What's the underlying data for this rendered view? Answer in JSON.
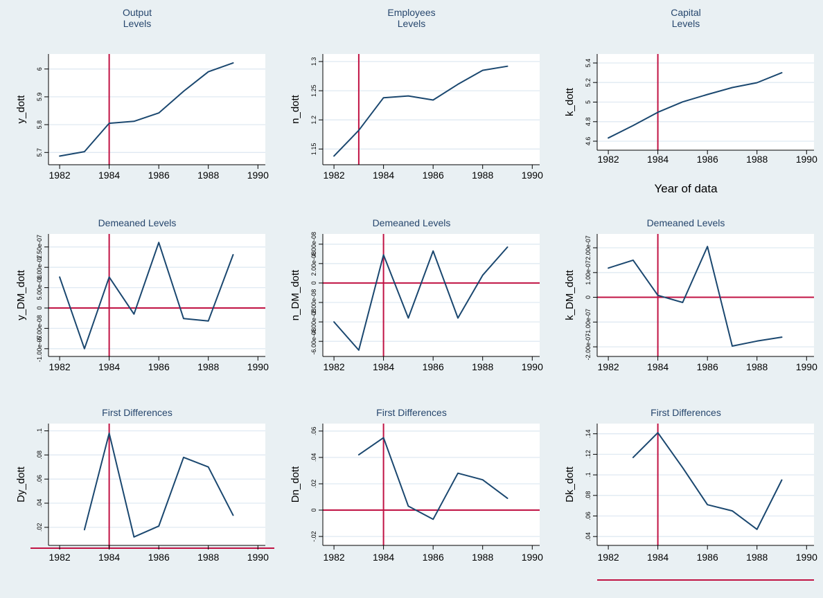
{
  "colors": {
    "line": "#1a476f",
    "refline": "#c01243",
    "grid": "#dfe9f2",
    "axis": "#000000",
    "title": "#26466d",
    "plot_bg": "#ffffff",
    "page_bg": "#e9f0f3"
  },
  "chart_data": [
    {
      "type": "line",
      "title": "Output\nLevels",
      "ylabel_axis": "y_dott",
      "xlabel": "",
      "x": [
        1982,
        1983,
        1984,
        1985,
        1986,
        1987,
        1988,
        1989
      ],
      "values": [
        5.687,
        5.703,
        5.805,
        5.812,
        5.842,
        5.92,
        5.99,
        6.022
      ],
      "xticks": [
        1982,
        1984,
        1986,
        1988,
        1990
      ],
      "yticks": [
        5.7,
        5.8,
        5.9,
        6
      ],
      "ytick_labels": [
        "5.7",
        "5.8",
        "5.9",
        "6"
      ],
      "xlim": [
        1981.55,
        1990.3
      ],
      "ylim": [
        5.656,
        6.054
      ],
      "refline_x": 1984,
      "refline_y": null,
      "refline_y_style": null
    },
    {
      "type": "line",
      "title": "Employees\nLevels",
      "ylabel_axis": "n_dott",
      "xlabel": "",
      "x": [
        1982,
        1983,
        1984,
        1985,
        1986,
        1987,
        1988,
        1989
      ],
      "values": [
        1.138,
        1.182,
        1.238,
        1.241,
        1.234,
        1.261,
        1.285,
        1.292
      ],
      "xticks": [
        1982,
        1984,
        1986,
        1988,
        1990
      ],
      "yticks": [
        1.15,
        1.2,
        1.25,
        1.3
      ],
      "ytick_labels": [
        "1.15",
        "1.2",
        "1.25",
        "1.3"
      ],
      "xlim": [
        1981.55,
        1990.3
      ],
      "ylim": [
        1.123,
        1.313
      ],
      "refline_x": 1983,
      "refline_y": null,
      "refline_y_style": null
    },
    {
      "type": "line",
      "title": "Capital\nLevels",
      "ylabel_axis": "k_dott",
      "xlabel": "Year of data",
      "x": [
        1982,
        1983,
        1984,
        1985,
        1986,
        1987,
        1988,
        1989
      ],
      "values": [
        4.633,
        4.76,
        4.896,
        5.002,
        5.078,
        5.149,
        5.198,
        5.3
      ],
      "xticks": [
        1982,
        1984,
        1986,
        1988,
        1990
      ],
      "yticks": [
        4.6,
        4.8,
        5,
        5.2,
        5.4
      ],
      "ytick_labels": [
        "4.6",
        "4.8",
        "5",
        "5.2",
        "5.4"
      ],
      "xlim": [
        1981.55,
        1990.3
      ],
      "ylim": [
        4.508,
        5.492
      ],
      "refline_x": 1984,
      "refline_y": null,
      "refline_y_style": null
    },
    {
      "type": "line",
      "title": "Demeaned Levels",
      "ylabel_axis": "y_DM_dott",
      "xlabel": "",
      "x": [
        1982,
        1983,
        1984,
        1985,
        1986,
        1987,
        1988,
        1989
      ],
      "values": [
        7.6e-08,
        -1e-07,
        7.6e-08,
        -1.5e-08,
        1.61e-07,
        -2.6e-08,
        -3.2e-08,
        1.31e-07
      ],
      "xticks": [
        1982,
        1984,
        1986,
        1988,
        1990
      ],
      "yticks": [
        -1e-07,
        -5e-08,
        0,
        5e-08,
        1e-07,
        1.5e-07
      ],
      "ytick_labels": [
        "-1.00e-07",
        "-5.00e-08",
        "0",
        "5.00e-08",
        "1.00e-07",
        "1.50e-07"
      ],
      "xlim": [
        1981.55,
        1990.3
      ],
      "ylim": [
        -1.19e-07,
        1.82e-07
      ],
      "refline_x": 1984,
      "refline_y": 0,
      "refline_y_style": "in"
    },
    {
      "type": "line",
      "title": "Demeaned Levels",
      "ylabel_axis": "n_DM_dott",
      "xlabel": "",
      "x": [
        1982,
        1983,
        1984,
        1985,
        1986,
        1987,
        1988,
        1989
      ],
      "values": [
        -4e-08,
        -6.9e-08,
        2.9e-08,
        -3.6e-08,
        3.3e-08,
        -3.6e-08,
        8e-09,
        3.7e-08
      ],
      "xticks": [
        1982,
        1984,
        1986,
        1988,
        1990
      ],
      "yticks": [
        -6e-08,
        -4e-08,
        -2e-08,
        0,
        2e-08,
        4e-08
      ],
      "ytick_labels": [
        "-6.00e-08",
        "-4.00e-08",
        "-2.00e-08",
        "0",
        "2.00e-08",
        "4.00e-08"
      ],
      "xlim": [
        1981.55,
        1990.3
      ],
      "ylim": [
        -7.55e-08,
        5.05e-08
      ],
      "refline_x": 1984,
      "refline_y": 0,
      "refline_y_style": "in"
    },
    {
      "type": "line",
      "title": "Demeaned Levels",
      "ylabel_axis": "k_DM_dott",
      "xlabel": "",
      "x": [
        1982,
        1983,
        1984,
        1985,
        1986,
        1987,
        1988,
        1989
      ],
      "values": [
        1.18e-07,
        1.5e-07,
        8e-09,
        -2.1e-08,
        2.05e-07,
        -1.97e-07,
        -1.77e-07,
        -1.61e-07
      ],
      "xticks": [
        1982,
        1984,
        1986,
        1988,
        1990
      ],
      "yticks": [
        -2e-07,
        -1e-07,
        0,
        1e-07,
        2e-07
      ],
      "ytick_labels": [
        "-2.00e-07",
        "-1.00e-07",
        "0",
        "1.00e-07",
        "2.00e-07"
      ],
      "xlim": [
        1981.55,
        1990.3
      ],
      "ylim": [
        -2.39e-07,
        2.56e-07
      ],
      "refline_x": 1984,
      "refline_y": 0,
      "refline_y_style": "in"
    },
    {
      "type": "line",
      "title": "First Differences",
      "ylabel_axis": "Dy_dott",
      "xlabel": "",
      "x": [
        1983,
        1984,
        1985,
        1986,
        1987,
        1988,
        1989
      ],
      "values": [
        0.018,
        0.098,
        0.012,
        0.021,
        0.078,
        0.07,
        0.03
      ],
      "xticks": [
        1982,
        1984,
        1986,
        1988,
        1990
      ],
      "yticks": [
        0.02,
        0.04,
        0.06,
        0.08,
        0.1
      ],
      "ytick_labels": [
        ".02",
        ".04",
        ".06",
        ".08",
        ".1"
      ],
      "xlim": [
        1981.55,
        1990.3
      ],
      "ylim": [
        0.005,
        0.106
      ],
      "refline_x": 1984,
      "refline_y": 0,
      "refline_y_style": "under-axis"
    },
    {
      "type": "line",
      "title": "First Differences",
      "ylabel_axis": "Dn_dott",
      "xlabel": "",
      "x": [
        1983,
        1984,
        1985,
        1986,
        1987,
        1988,
        1989
      ],
      "values": [
        0.042,
        0.055,
        0.003,
        -0.007,
        0.028,
        0.023,
        0.009
      ],
      "xticks": [
        1982,
        1984,
        1986,
        1988,
        1990
      ],
      "yticks": [
        -0.02,
        0,
        0.02,
        0.04,
        0.06
      ],
      "ytick_labels": [
        "-.02",
        "0",
        ".02",
        ".04",
        ".06"
      ],
      "xlim": [
        1981.55,
        1990.3
      ],
      "ylim": [
        -0.0268,
        0.0657
      ],
      "refline_x": 1984,
      "refline_y": 0,
      "refline_y_style": "in"
    },
    {
      "type": "line",
      "title": "First Differences",
      "ylabel_axis": "Dk_dott",
      "xlabel": "",
      "x": [
        1983,
        1984,
        1985,
        1986,
        1987,
        1988,
        1989
      ],
      "values": [
        0.117,
        0.141,
        0.107,
        0.071,
        0.065,
        0.047,
        0.095
      ],
      "xticks": [
        1982,
        1984,
        1986,
        1988,
        1990
      ],
      "yticks": [
        0.04,
        0.06,
        0.08,
        0.1,
        0.12,
        0.14
      ],
      "ytick_labels": [
        ".04",
        ".06",
        ".08",
        ".1",
        ".12",
        ".14"
      ],
      "xlim": [
        1981.55,
        1990.3
      ],
      "ylim": [
        0.0314,
        0.1499
      ],
      "refline_x": 1984,
      "refline_y": 0,
      "refline_y_style": "under-labels"
    }
  ]
}
